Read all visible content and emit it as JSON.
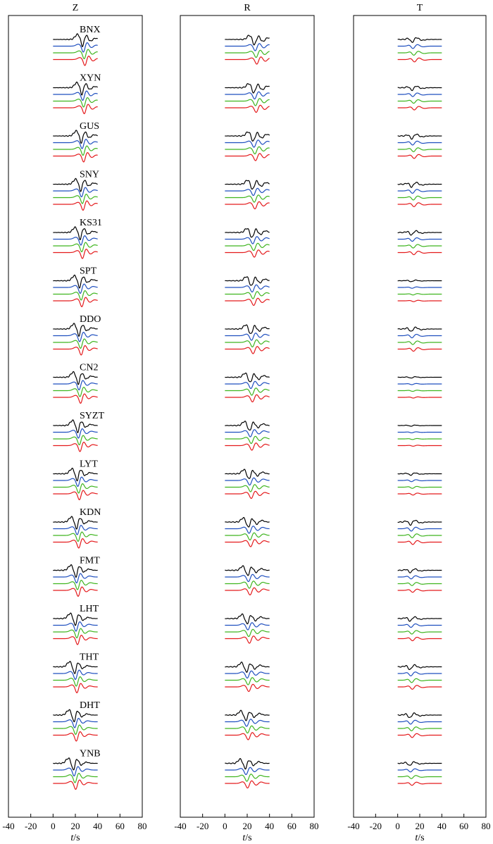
{
  "chart_data": {
    "type": "line",
    "panels": [
      {
        "component": "Z"
      },
      {
        "component": "R"
      },
      {
        "component": "T"
      }
    ],
    "stations": [
      "BNX",
      "XYN",
      "GUS",
      "SNY",
      "KS31",
      "SPT",
      "DDO",
      "CN2",
      "SYZT",
      "LYT",
      "KDN",
      "FMT",
      "LHT",
      "THT",
      "DHT",
      "YNB"
    ],
    "traces_per_station": 4,
    "trace_colors": [
      "#000000",
      "#1f4fbf",
      "#3fb51f",
      "#e41a1c"
    ],
    "x_axis": {
      "label_italic": "t",
      "label_rest": "/s",
      "ticks": [
        "-40",
        "-20",
        "0",
        "20",
        "40",
        "60",
        "80"
      ],
      "xlim": [
        -40,
        80
      ]
    },
    "trace_x_range": [
      0,
      40
    ],
    "grid": false
  }
}
